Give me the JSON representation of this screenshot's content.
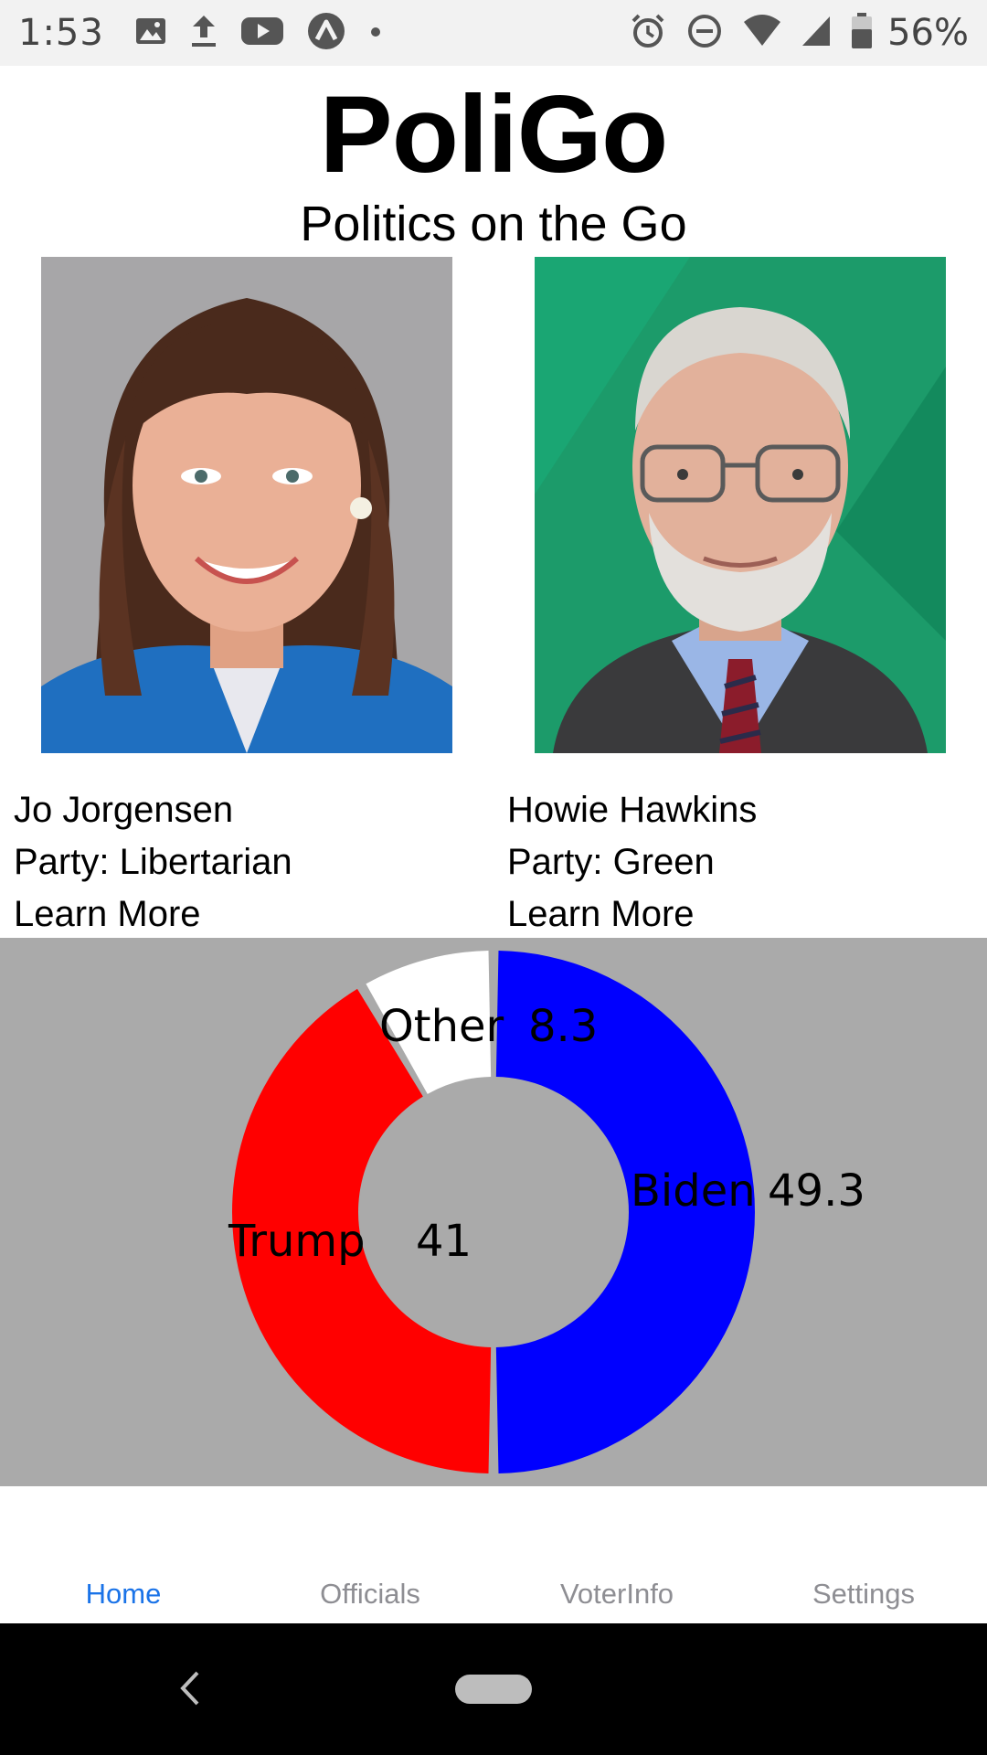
{
  "status_bar": {
    "time": "1:53",
    "left_icons": [
      "image-icon",
      "upload-icon",
      "youtube-icon",
      "app-icon",
      "dot-icon"
    ],
    "right_icons": [
      "alarm-icon",
      "do-not-disturb-icon",
      "wifi-icon",
      "signal-icon",
      "battery-icon"
    ],
    "battery": "56%"
  },
  "header": {
    "title": "PoliGo",
    "subtitle": "Politics on the Go"
  },
  "candidates": [
    {
      "name": "Jo Jorgensen",
      "party": "Party: Libertarian",
      "link": "Learn More",
      "photo_bg": "#a7a6a8"
    },
    {
      "name": "Howie Hawkins",
      "party": "Party: Green",
      "link": "Learn More",
      "photo_bg": "#1c9b6a"
    }
  ],
  "chart_data": {
    "type": "pie",
    "donut": true,
    "background": "#aaaaaa",
    "slices": [
      {
        "label": "Biden",
        "value": 49.3,
        "color": "#0000ff"
      },
      {
        "label": "Trump",
        "value": 41,
        "color": "#ff0000"
      },
      {
        "label": "Other",
        "value": 8.3,
        "color": "#ffffff"
      }
    ]
  },
  "tabs": [
    {
      "label": "Home",
      "active": true
    },
    {
      "label": "Officials",
      "active": false
    },
    {
      "label": "VoterInfo",
      "active": false
    },
    {
      "label": "Settings",
      "active": false
    }
  ],
  "colors": {
    "accent": "#1a73e8",
    "inactive_tab": "#8e8e93"
  }
}
